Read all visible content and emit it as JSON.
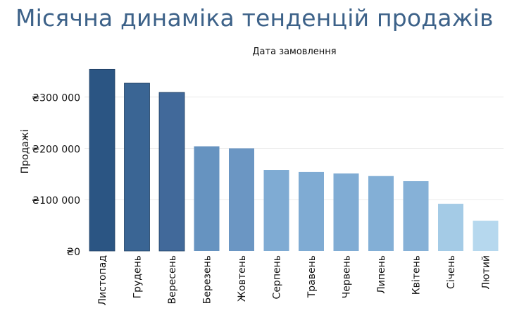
{
  "title": "Місячна динаміка тенденцій продажів",
  "chart_data": {
    "type": "bar",
    "title": "Місячна динаміка тенденцій продажів",
    "top_label": "Дата замовлення",
    "ylabel": "Продажі",
    "xlabel": "",
    "categories": [
      "Листопад",
      "Грудень",
      "Вересень",
      "Березень",
      "Жовтень",
      "Серпень",
      "Травень",
      "Червень",
      "Липень",
      "Квітень",
      "Січень",
      "Лютий"
    ],
    "values": [
      354000,
      327000,
      309000,
      204000,
      200000,
      158000,
      154000,
      151000,
      146000,
      136000,
      92000,
      59000
    ],
    "ylim": [
      0,
      360000
    ],
    "yticks": [
      0,
      100000,
      200000,
      300000
    ],
    "ytick_labels": [
      "₴0",
      "₴100 000",
      "₴200 000",
      "₴300 000"
    ],
    "grid": true,
    "colors": [
      "#2b5583",
      "#3a6594",
      "#41699a",
      "#6693c0",
      "#6b96c3",
      "#7fabd3",
      "#7fabd3",
      "#80acd4",
      "#83afd6",
      "#86b1d7",
      "#a4cbe6",
      "#b6d8ee"
    ]
  }
}
